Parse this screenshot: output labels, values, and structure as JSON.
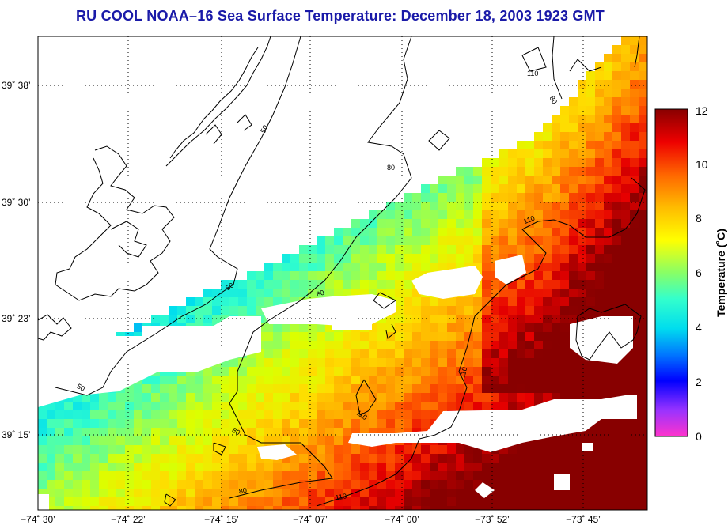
{
  "title": "RU COOL  NOAA–16  Sea Surface Temperature:  December 18, 2003 1923 GMT",
  "chart_data": {
    "type": "heatmap",
    "title": "RU COOL  NOAA–16  Sea Surface Temperature:  December 18, 2003 1923 GMT",
    "x_ticks": [
      "−74˚ 30’",
      "−74˚ 22’",
      "−74˚ 15’",
      "−74˚ 07’",
      "−74˚ 00’",
      "−73˚ 52’",
      "−73˚ 45’"
    ],
    "y_ticks": [
      "39˚ 38’",
      "39˚ 30’",
      "39˚ 23’",
      "39˚ 15’"
    ],
    "colorbar": {
      "label": "Temperature (˚C)",
      "ticks": [
        "0",
        "2",
        "4",
        "6",
        "8",
        "10",
        "12"
      ],
      "range": [
        0,
        12
      ]
    },
    "contour_labels": [
      "50",
      "50",
      "50",
      "80",
      "80",
      "80",
      "80",
      "110",
      "110",
      "110",
      "110",
      "110",
      "80"
    ],
    "grid": true
  }
}
